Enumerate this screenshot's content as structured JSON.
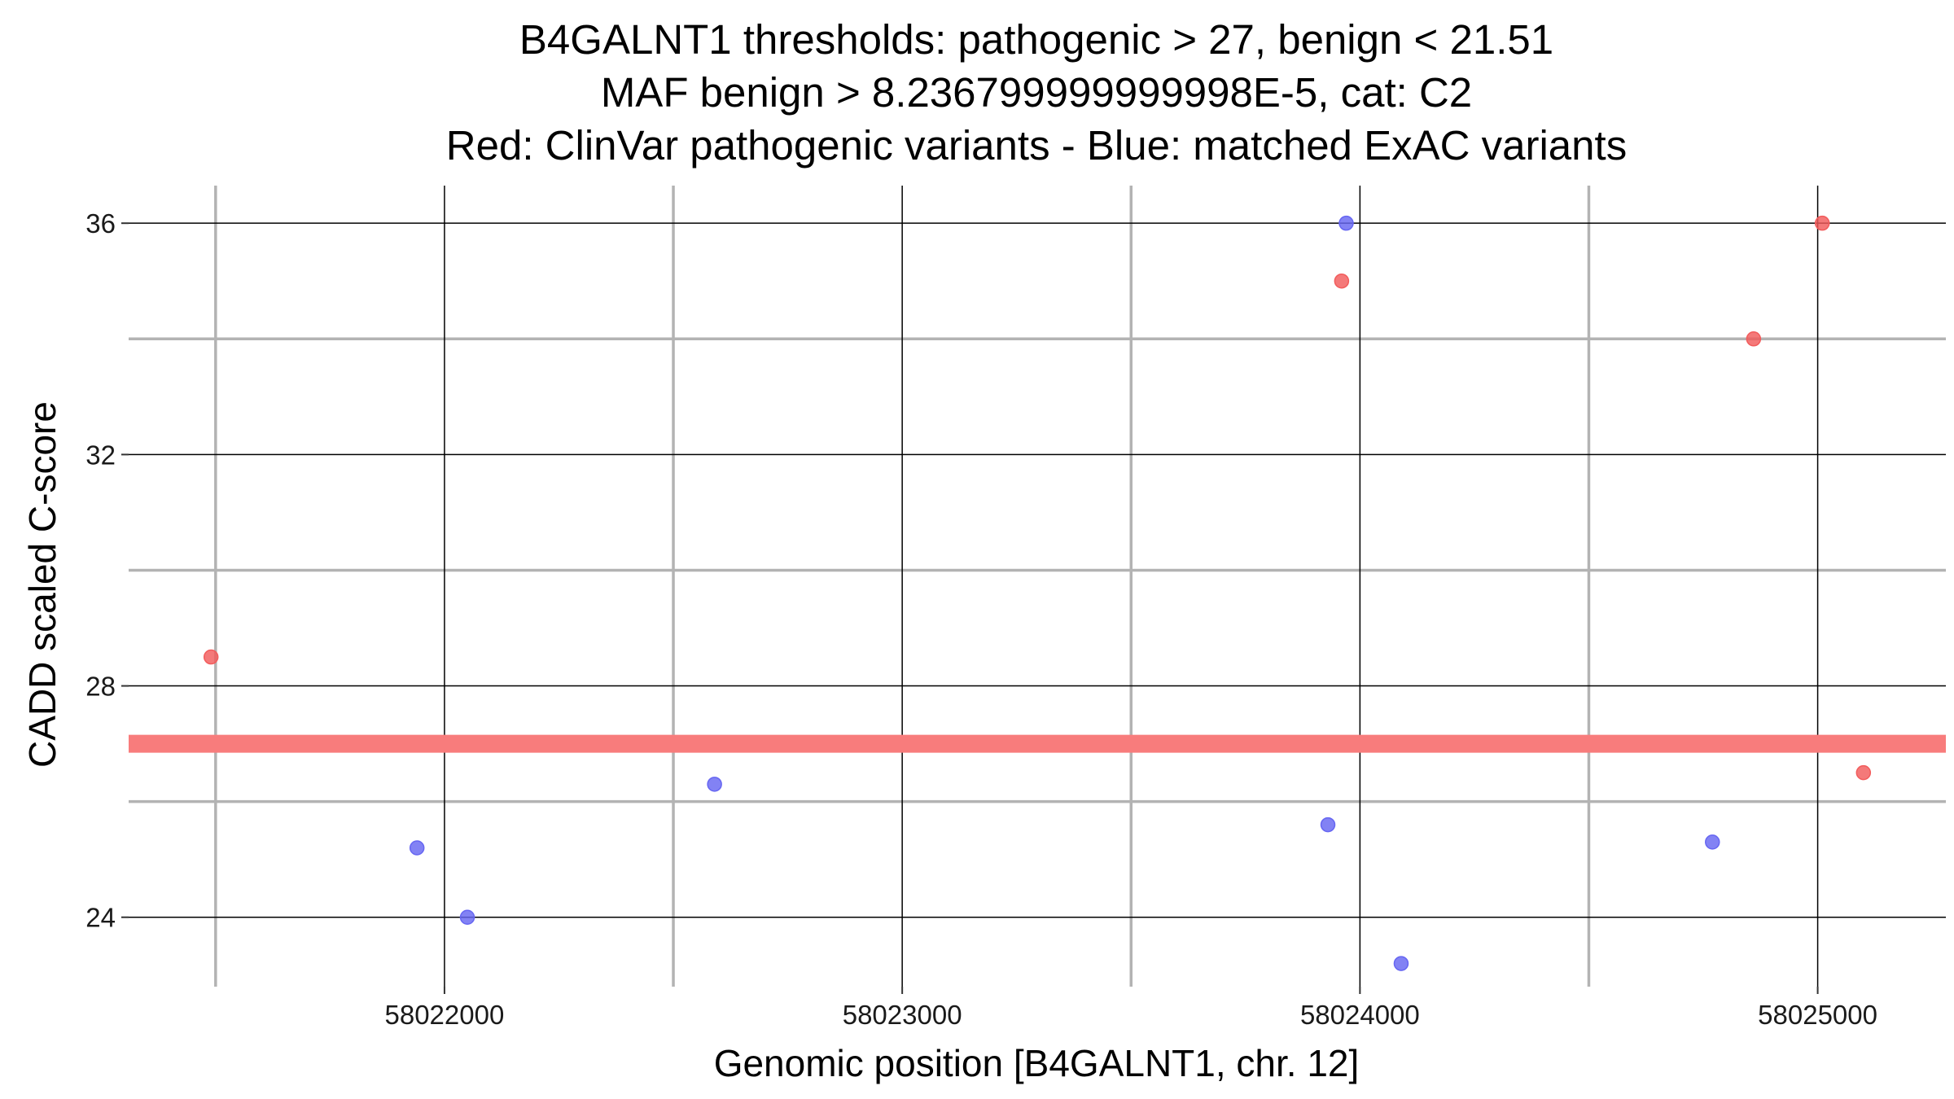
{
  "chart_data": {
    "type": "scatter",
    "title": [
      "B4GALNT1 thresholds: pathogenic > 27, benign < 21.51",
      "MAF benign > 8.236799999999998E-5, cat: C2",
      "Red: ClinVar pathogenic variants - Blue: matched ExAC variants"
    ],
    "xlabel": "Genomic position [B4GALNT1, chr. 12]",
    "ylabel": "CADD scaled C-score",
    "xlim": [
      58021310,
      58025280
    ],
    "ylim": [
      22.8,
      36.65
    ],
    "x_ticks": [
      58022000,
      58023000,
      58024000,
      58025000
    ],
    "x_tick_labels": [
      "58022000",
      "58023000",
      "58024000",
      "58025000"
    ],
    "x_minor_ticks": [
      58021500,
      58022500,
      58023500,
      58024500
    ],
    "y_ticks": [
      24,
      28,
      32,
      36
    ],
    "y_tick_labels": [
      "24",
      "28",
      "32",
      "36"
    ],
    "y_minor_ticks": [
      26,
      30,
      34
    ],
    "threshold": {
      "name": "pathogenic threshold",
      "y": 27,
      "color": "#f87c7c"
    },
    "grid": true,
    "series": [
      {
        "name": "ClinVar pathogenic variants",
        "color": "#f25c5c",
        "points": [
          {
            "x": 58021490,
            "y": 28.5
          },
          {
            "x": 58023960,
            "y": 35.0
          },
          {
            "x": 58024860,
            "y": 34.0
          },
          {
            "x": 58025010,
            "y": 36.0
          },
          {
            "x": 58025100,
            "y": 26.5
          }
        ]
      },
      {
        "name": "matched ExAC variants",
        "color": "#6666f2",
        "points": [
          {
            "x": 58021940,
            "y": 25.2
          },
          {
            "x": 58022050,
            "y": 24.0
          },
          {
            "x": 58022590,
            "y": 26.3
          },
          {
            "x": 58023930,
            "y": 25.6
          },
          {
            "x": 58023970,
            "y": 36.0
          },
          {
            "x": 58024090,
            "y": 23.2
          },
          {
            "x": 58024770,
            "y": 25.3
          }
        ]
      }
    ]
  }
}
